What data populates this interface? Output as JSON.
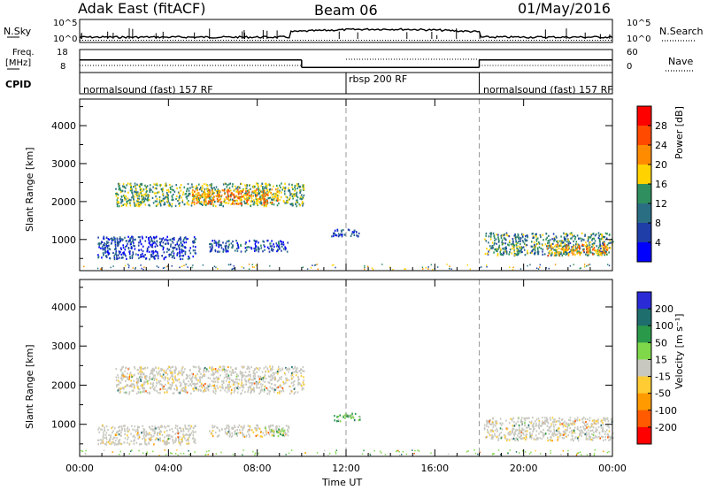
{
  "header": {
    "station": "Adak East (fitACF)",
    "beam": "Beam 06",
    "date": "01/May/2016"
  },
  "top_panels": {
    "nsky_label": "N.Sky",
    "nsearch_label": "N.Search",
    "left_ticks": [
      "10^5",
      "10^0"
    ],
    "right_ticks": [
      "10^5",
      "10^0"
    ],
    "freq_label_1": "Freq.",
    "freq_label_2": "[MHz]",
    "freq_ticks": [
      "18",
      "8"
    ],
    "nave_ticks": [
      "60",
      "0"
    ],
    "nave_label": "Nave",
    "cpid_label": "CPID",
    "cpid_segments": [
      {
        "label": "normalsound (fast) 157 RF",
        "start": 0,
        "end": 12
      },
      {
        "label": "rbsp 200 RF",
        "start": 12,
        "end": 18
      },
      {
        "label": "normalsound (fast) 157 RF",
        "start": 18,
        "end": 24
      }
    ],
    "freq_steps": [
      {
        "start": 0,
        "end": 10,
        "value": 13.5
      },
      {
        "start": 10,
        "end": 18,
        "value": 10.2
      },
      {
        "start": 18,
        "end": 24,
        "value": 13.5
      }
    ]
  },
  "colorbars": {
    "power": {
      "label": "Power [dB]",
      "ticks": [
        "28",
        "24",
        "20",
        "16",
        "12",
        "8",
        "4"
      ],
      "colors": [
        "#ff0000",
        "#ff4a00",
        "#ff8c00",
        "#ffd200",
        "#2f8f5f",
        "#2a6e84",
        "#1f3ea8",
        "#0000ff"
      ]
    },
    "velocity": {
      "label": "Velocity [m s⁻¹]",
      "ticks": [
        "200",
        "100",
        "50",
        "15",
        "-15",
        "-50",
        "-100",
        "-200"
      ],
      "colors": [
        "#2a2ad6",
        "#1f6e6e",
        "#2a9a4a",
        "#7fd84a",
        "#c8c8c0",
        "#ffcc33",
        "#ff9a00",
        "#ff5a00",
        "#ff0000"
      ]
    }
  },
  "chart_data": [
    {
      "type": "heatmap",
      "name": "power",
      "ylabel": "Slant Range [km]",
      "xlabel": "",
      "ylim": [
        180,
        4700
      ],
      "y_ticks": [
        1000,
        2000,
        3000,
        4000
      ],
      "x_ticks": [
        0,
        4,
        8,
        12,
        16,
        20,
        24
      ],
      "regions": [
        {
          "t0": 1.6,
          "t1": 10.1,
          "r0": 1900,
          "r1": 2500,
          "value": 14
        },
        {
          "t0": 5.0,
          "t1": 9.0,
          "r0": 1950,
          "r1": 2350,
          "value": 22
        },
        {
          "t0": 0.8,
          "t1": 5.2,
          "r0": 500,
          "r1": 1100,
          "value": 6
        },
        {
          "t0": 5.8,
          "t1": 9.4,
          "r0": 700,
          "r1": 1000,
          "value": 7
        },
        {
          "t0": 11.3,
          "t1": 12.6,
          "r0": 1100,
          "r1": 1300,
          "value": 6
        },
        {
          "t0": 18.2,
          "t1": 24.0,
          "r0": 600,
          "r1": 1200,
          "value": 12
        },
        {
          "t0": 21.0,
          "t1": 23.8,
          "r0": 600,
          "r1": 900,
          "value": 20
        }
      ]
    },
    {
      "type": "heatmap",
      "name": "velocity",
      "ylabel": "Slant Range [km]",
      "xlabel": "Time UT",
      "ylim": [
        180,
        4700
      ],
      "y_ticks": [
        1000,
        2000,
        3000,
        4000
      ],
      "x_ticks": [
        0,
        4,
        8,
        12,
        16,
        20,
        24
      ],
      "x_tick_labels": [
        "00:00",
        "04:00",
        "08:00",
        "12:00",
        "16:00",
        "20:00",
        "00:00"
      ],
      "regions": [
        {
          "t0": 1.6,
          "t1": 10.1,
          "r0": 1800,
          "r1": 2500,
          "value": 0
        },
        {
          "t0": 0.8,
          "t1": 5.2,
          "r0": 500,
          "r1": 1000,
          "value": 0
        },
        {
          "t0": 5.8,
          "t1": 9.4,
          "r0": 700,
          "r1": 1000,
          "value": 0
        },
        {
          "t0": 11.4,
          "t1": 12.6,
          "r0": 1100,
          "r1": 1300,
          "value": 30
        },
        {
          "t0": 8.6,
          "t1": 9.2,
          "r0": 700,
          "r1": 900,
          "value": 30
        },
        {
          "t0": 18.2,
          "t1": 24.0,
          "r0": 600,
          "r1": 1200,
          "value": 0
        }
      ]
    }
  ]
}
